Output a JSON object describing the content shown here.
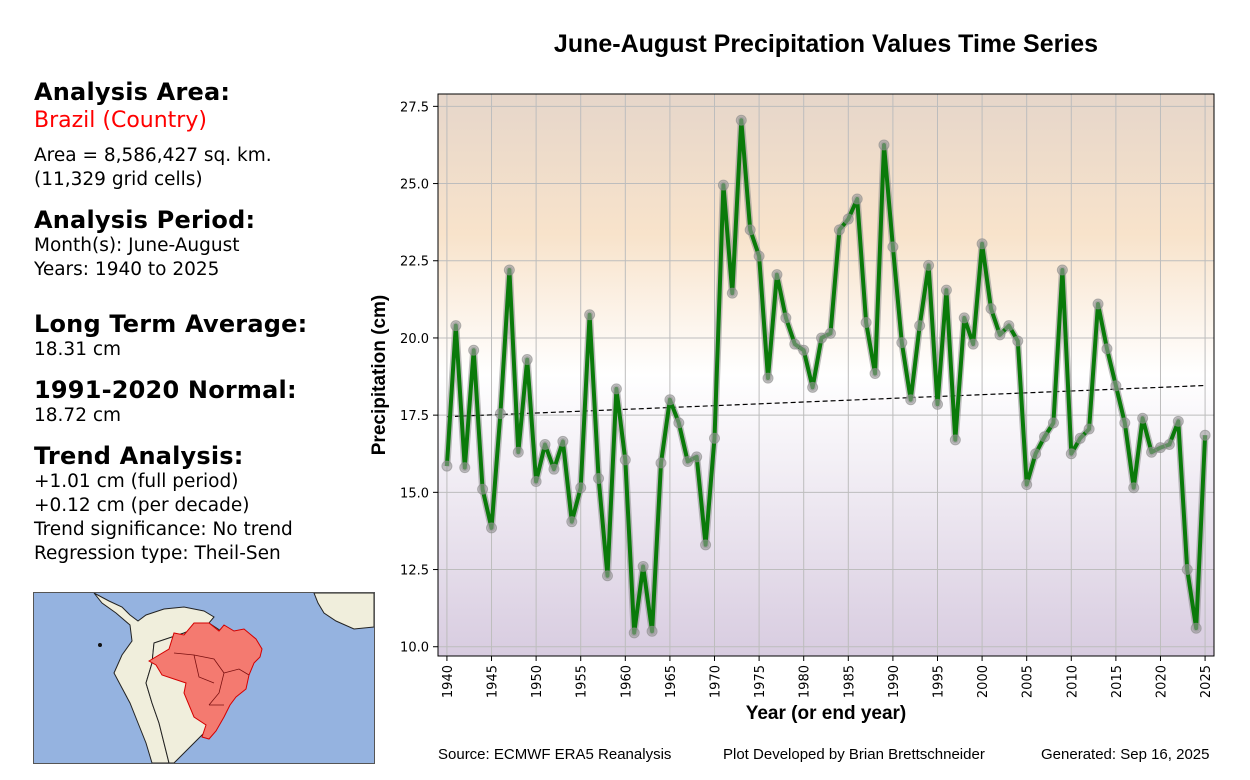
{
  "sidebar": {
    "area_heading": "Analysis Area:",
    "area_name": "Brazil (Country)",
    "area_size": "Area = 8,586,427 sq. km.",
    "grid_cells": "(11,329 grid cells)",
    "period_heading": "Analysis Period:",
    "months": "Month(s): June-August",
    "years": "Years: 1940 to 2025",
    "lta_heading": "Long Term Average:",
    "lta_value": "18.31 cm",
    "normal_heading": "1991-2020 Normal:",
    "normal_value": "18.72 cm",
    "trend_heading": "Trend Analysis:",
    "trend_full": "+1.01 cm (full period)",
    "trend_decade": "+0.12 cm (per decade)",
    "trend_significance": "Trend significance: No trend",
    "regression_type": "Regression type: Theil-Sen",
    "area_color": "#ff0000"
  },
  "map": {
    "description": "Locator map of South America with Brazil highlighted",
    "ocean_color": "#95b3e0",
    "land_color": "#f0eedc",
    "highlight_color": "#f47a70"
  },
  "footer": {
    "source": "Source: ECMWF ERA5 Reanalysis",
    "credit": "Plot Developed by Brian Brettschneider",
    "generated": "Generated: Sep 16, 2025"
  },
  "chart_data": {
    "type": "line",
    "title": "June-August Precipitation Values Time Series",
    "xlabel": "Year (or end year)",
    "ylabel": "Precipitation (cm)",
    "xlim": [
      1939,
      2026
    ],
    "ylim": [
      9.7,
      27.9
    ],
    "xticks": [
      1940,
      1945,
      1950,
      1955,
      1960,
      1965,
      1970,
      1975,
      1980,
      1985,
      1990,
      1995,
      2000,
      2005,
      2010,
      2015,
      2020,
      2025
    ],
    "yticks": [
      10.0,
      12.5,
      15.0,
      17.5,
      20.0,
      22.5,
      25.0,
      27.5
    ],
    "ytick_labels": [
      "10.0",
      "12.5",
      "15.0",
      "17.5",
      "20.0",
      "22.5",
      "25.0",
      "27.5"
    ],
    "grid": true,
    "line_color": "#0a7a0a",
    "marker_color": "#9a9a9a",
    "trend_color": "#000000",
    "background_gradient": [
      "#e6d5c8",
      "#f8e2c8",
      "#ffffff",
      "#d8cce0"
    ],
    "series": [
      {
        "name": "Precipitation",
        "x": [
          1940,
          1941,
          1942,
          1943,
          1944,
          1945,
          1946,
          1947,
          1948,
          1949,
          1950,
          1951,
          1952,
          1953,
          1954,
          1955,
          1956,
          1957,
          1958,
          1959,
          1960,
          1961,
          1962,
          1963,
          1964,
          1965,
          1966,
          1967,
          1968,
          1969,
          1970,
          1971,
          1972,
          1973,
          1974,
          1975,
          1976,
          1977,
          1978,
          1979,
          1980,
          1981,
          1982,
          1983,
          1984,
          1985,
          1986,
          1987,
          1988,
          1989,
          1990,
          1991,
          1992,
          1993,
          1994,
          1995,
          1996,
          1997,
          1998,
          1999,
          2000,
          2001,
          2002,
          2003,
          2004,
          2005,
          2006,
          2007,
          2008,
          2009,
          2010,
          2011,
          2012,
          2013,
          2014,
          2015,
          2016,
          2017,
          2018,
          2019,
          2020,
          2021,
          2022,
          2023,
          2024,
          2025
        ],
        "y": [
          15.85,
          20.4,
          15.8,
          19.6,
          15.1,
          13.85,
          17.55,
          22.2,
          16.3,
          19.3,
          15.35,
          16.55,
          15.75,
          16.65,
          14.05,
          15.15,
          20.75,
          15.45,
          12.3,
          18.35,
          16.05,
          10.45,
          12.6,
          10.5,
          15.95,
          18.0,
          17.25,
          16.0,
          16.15,
          13.3,
          16.75,
          24.95,
          21.45,
          27.05,
          23.5,
          22.65,
          18.7,
          22.05,
          20.65,
          19.8,
          19.6,
          18.4,
          20.0,
          20.15,
          23.5,
          23.85,
          24.5,
          20.5,
          18.85,
          26.25,
          22.95,
          19.85,
          18.0,
          20.4,
          22.35,
          17.85,
          21.55,
          16.7,
          20.65,
          19.8,
          23.05,
          20.95,
          20.1,
          20.4,
          19.9,
          15.25,
          16.25,
          16.8,
          17.25,
          22.2,
          16.25,
          16.75,
          17.05,
          21.1,
          19.65,
          18.45,
          17.25,
          15.15,
          17.4,
          16.3,
          16.45,
          16.55,
          17.3,
          12.5,
          10.6,
          16.85
        ]
      },
      {
        "name": "Theil-Sen trend",
        "style": "dashed",
        "x": [
          1940,
          2025
        ],
        "y": [
          17.45,
          18.46
        ]
      }
    ]
  }
}
